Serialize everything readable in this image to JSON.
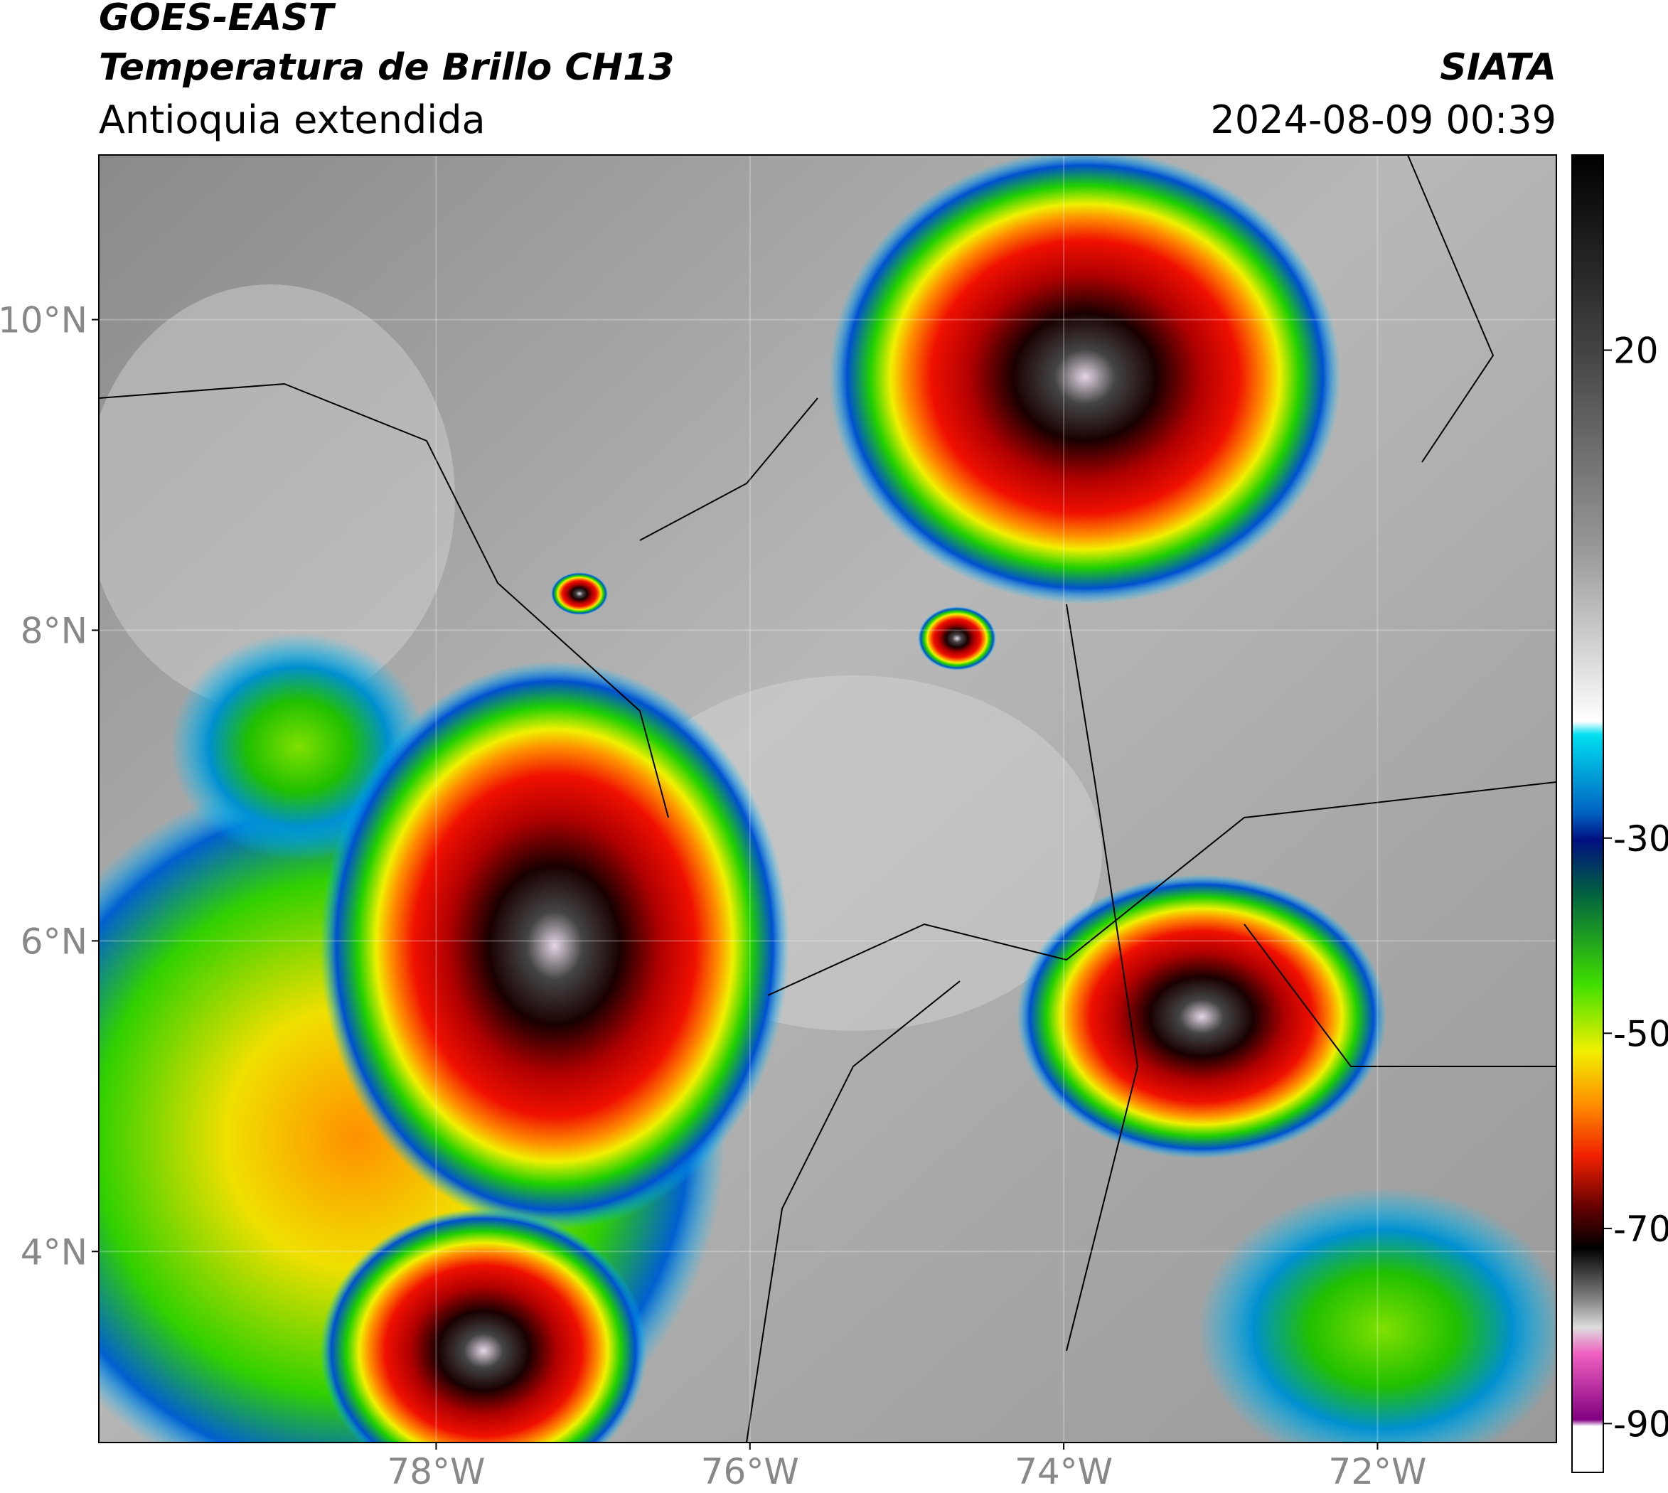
{
  "header": {
    "title": "GOES-EAST",
    "subtitle": "Temperatura de Brillo CH13",
    "region": "Antioquia extendida",
    "source": "SIATA",
    "datetime": "2024-08-09 00:39"
  },
  "map": {
    "lon_range": [
      -80.15,
      -70.86
    ],
    "lat_range": [
      2.77,
      11.06
    ],
    "lat_ticks": [
      {
        "value": 10,
        "label": "10°N"
      },
      {
        "value": 8,
        "label": "8°N"
      },
      {
        "value": 6,
        "label": "6°N"
      },
      {
        "value": 4,
        "label": "4°N"
      }
    ],
    "lon_ticks": [
      {
        "value": -78,
        "label": "78°W"
      },
      {
        "value": -76,
        "label": "76°W"
      },
      {
        "value": -74,
        "label": "74°W"
      },
      {
        "value": -72,
        "label": "72°W"
      }
    ]
  },
  "colorbar": {
    "range": [
      -95,
      40
    ],
    "ticks": [
      20,
      -30,
      -50,
      -70,
      -90
    ]
  }
}
